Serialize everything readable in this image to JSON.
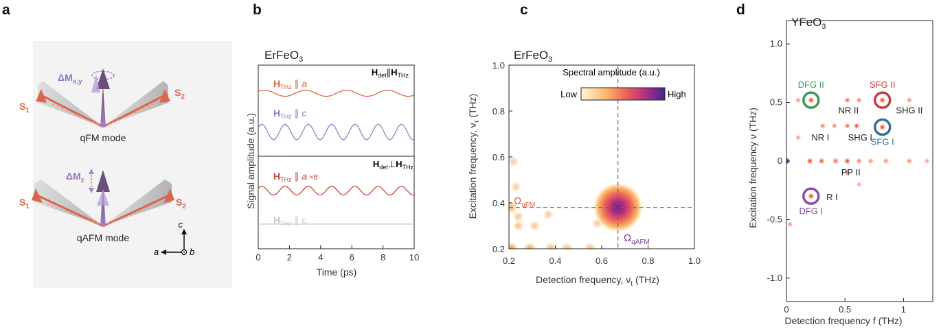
{
  "panel_labels": [
    "a",
    "b",
    "c",
    "d"
  ],
  "panel_a": {
    "top": {
      "label": "qFM mode",
      "delta_M": "ΔM",
      "delta_sub": "x,y",
      "s1": "S",
      "s1_sub": "1",
      "s2": "S",
      "s2_sub": "2"
    },
    "bottom": {
      "label": "qAFM mode",
      "delta_M": "ΔM",
      "delta_sub": "z",
      "s1": "S",
      "s1_sub": "1",
      "s2": "S",
      "s2_sub": "2"
    },
    "axes": {
      "c": "c",
      "a": "a",
      "b": "b"
    },
    "colors": {
      "spin": "#d9664a",
      "cone": "#bcbcbc",
      "magnet": "#9b72c0",
      "magnet_dark": "#6b4f7a"
    }
  },
  "chart_data": [
    {
      "id": "b",
      "type": "line",
      "title": "ErFeO",
      "title_sub": "3",
      "xlabel": "Time (ps)",
      "ylabel": "Signal amplitude (a.u.)",
      "xlim": [
        0,
        10
      ],
      "xticks": [
        "0",
        "2",
        "4",
        "6",
        "8",
        "10"
      ],
      "upper_label": {
        "H": "H",
        "det": "det",
        "par": "∥",
        "H2": "H",
        "thz": "THz"
      },
      "lower_label": {
        "H": "H",
        "det": "det",
        "perp": "⊥",
        "H2": "H",
        "thz": "THz"
      },
      "series": [
        {
          "name": "H",
          "sub": "THz",
          "rel": "∥",
          "axis": "a",
          "extra": "",
          "color": "#d9664a",
          "freq_thz": 0.38,
          "amplitude": 0.32,
          "baseline": 0.45,
          "panel": "upper"
        },
        {
          "name": "H",
          "sub": "THz",
          "rel": "∥",
          "axis": "c",
          "extra": "",
          "color": "#9580c0",
          "freq_thz": 0.67,
          "amplitude": 0.8,
          "baseline": -0.55,
          "panel": "upper"
        },
        {
          "name": "H",
          "sub": "THz",
          "rel": "∥",
          "axis": "a",
          "extra": "×8",
          "color": "#c8463a",
          "freq_thz": 0.67,
          "amplitude": 0.45,
          "baseline": 0.3,
          "panel": "lower"
        },
        {
          "name": "H",
          "sub": "THz",
          "rel": "∥",
          "axis": "c",
          "extra": "",
          "color": "#c9c9c9",
          "freq_thz": 0,
          "amplitude": 0.02,
          "baseline": -0.55,
          "panel": "lower"
        }
      ]
    },
    {
      "id": "c",
      "type": "heatmap",
      "title": "ErFeO",
      "title_sub": "3",
      "xlabel": "Detection frequency, ν",
      "xlabel_sub": "t",
      "xlabel_unit": " (THz)",
      "ylabel": "Excitation frequency, ν",
      "ylabel_sub": "τ",
      "ylabel_unit": " (THz)",
      "xlim": [
        0.2,
        1.0
      ],
      "ylim": [
        0.2,
        1.0
      ],
      "xticks": [
        "0.2",
        "0.4",
        "0.6",
        "0.8",
        "1.0"
      ],
      "yticks": [
        "0.2",
        "0.4",
        "0.6",
        "0.8",
        "1.0"
      ],
      "colorbar": {
        "title": "Spectral amplitude (a.u.)",
        "low": "Low",
        "high": "High"
      },
      "annotations": [
        {
          "text": "Ω",
          "sub": "qFM",
          "color": "#d9664a"
        },
        {
          "text": "Ω",
          "sub": "qAFM",
          "color": "#7b3fa0"
        }
      ],
      "guides": {
        "v": 0.67,
        "h": 0.38
      },
      "peaks": [
        {
          "x": 0.67,
          "y": 0.38,
          "strength": 1.0,
          "size": 0.11
        },
        {
          "x": 0.21,
          "y": 0.38,
          "strength": 0.3,
          "size": 0.03
        },
        {
          "x": 0.21,
          "y": 0.2,
          "strength": 0.6,
          "size": 0.03
        },
        {
          "x": 0.29,
          "y": 0.2,
          "strength": 0.45,
          "size": 0.03
        },
        {
          "x": 0.38,
          "y": 0.2,
          "strength": 0.3,
          "size": 0.03
        },
        {
          "x": 0.45,
          "y": 0.2,
          "strength": 0.25,
          "size": 0.03
        },
        {
          "x": 0.55,
          "y": 0.2,
          "strength": 0.25,
          "size": 0.03
        },
        {
          "x": 0.24,
          "y": 0.3,
          "strength": 0.25,
          "size": 0.025
        },
        {
          "x": 0.31,
          "y": 0.3,
          "strength": 0.2,
          "size": 0.025
        },
        {
          "x": 0.22,
          "y": 0.58,
          "strength": 0.15,
          "size": 0.025
        },
        {
          "x": 0.23,
          "y": 0.47,
          "strength": 0.15,
          "size": 0.025
        },
        {
          "x": 0.24,
          "y": 0.34,
          "strength": 0.2,
          "size": 0.025
        },
        {
          "x": 0.37,
          "y": 0.35,
          "strength": 0.15,
          "size": 0.025
        },
        {
          "x": 0.58,
          "y": 0.31,
          "strength": 0.15,
          "size": 0.025
        }
      ]
    },
    {
      "id": "d",
      "type": "heatmap",
      "title": "YFeO",
      "title_sub": "3",
      "xlabel": "Detection frequency f (THz)",
      "ylabel": "Excitation frequency ν (THz)",
      "xlim": [
        0,
        1.25
      ],
      "ylim": [
        -1.2,
        1.2
      ],
      "xticks": [
        "0",
        "0.5",
        "1"
      ],
      "yticks": [
        "1.0",
        "0.5",
        "0",
        "-0.5",
        "-1.0"
      ],
      "circles": [
        {
          "label": "DFG II",
          "x": 0.21,
          "y": 0.52,
          "color": "#3a9b56"
        },
        {
          "label": "SFG II",
          "x": 0.82,
          "y": 0.52,
          "color": "#c63b3b"
        },
        {
          "label": "SFG I",
          "x": 0.82,
          "y": 0.29,
          "color": "#2f6d9e"
        },
        {
          "label": "DFG I",
          "x": 0.21,
          "y": -0.3,
          "color": "#8a4fa8"
        }
      ],
      "labels": [
        {
          "text": "NR II",
          "x": 0.53,
          "y": 0.43
        },
        {
          "text": "SHG II",
          "x": 1.05,
          "y": 0.43
        },
        {
          "text": "NR I",
          "x": 0.29,
          "y": 0.2
        },
        {
          "text": "SHG I",
          "x": 0.63,
          "y": 0.2
        },
        {
          "text": "PP II",
          "x": 0.55,
          "y": -0.1
        },
        {
          "text": "R I",
          "x": 0.39,
          "y": -0.31
        }
      ],
      "peaks": [
        {
          "x": 0.0,
          "y": 0.0,
          "strength": 1.0,
          "size": 0.035,
          "dark": true
        },
        {
          "x": 0.2,
          "y": 0.0,
          "strength": 0.8,
          "size": 0.03
        },
        {
          "x": 0.3,
          "y": 0.0,
          "strength": 0.6,
          "size": 0.03
        },
        {
          "x": 0.42,
          "y": 0.0,
          "strength": 0.5,
          "size": 0.03
        },
        {
          "x": 0.52,
          "y": 0.0,
          "strength": 0.9,
          "size": 0.03
        },
        {
          "x": 0.62,
          "y": 0.0,
          "strength": 0.4,
          "size": 0.03
        },
        {
          "x": 0.72,
          "y": 0.0,
          "strength": 0.3,
          "size": 0.03
        },
        {
          "x": 0.85,
          "y": 0.0,
          "strength": 0.3,
          "size": 0.03
        },
        {
          "x": 1.05,
          "y": 0.0,
          "strength": 0.3,
          "size": 0.03
        },
        {
          "x": 1.2,
          "y": 0.0,
          "strength": 0.2,
          "size": 0.03
        },
        {
          "x": 0.21,
          "y": 0.52,
          "strength": 0.9,
          "size": 0.03
        },
        {
          "x": 0.82,
          "y": 0.52,
          "strength": 0.9,
          "size": 0.03
        },
        {
          "x": 0.82,
          "y": 0.29,
          "strength": 0.8,
          "size": 0.03
        },
        {
          "x": 0.21,
          "y": -0.3,
          "strength": 0.8,
          "size": 0.03
        },
        {
          "x": 0.52,
          "y": 0.52,
          "strength": 0.5,
          "size": 0.028
        },
        {
          "x": 0.52,
          "y": 0.3,
          "strength": 0.5,
          "size": 0.028
        },
        {
          "x": 0.6,
          "y": 0.3,
          "strength": 0.9,
          "size": 0.028
        },
        {
          "x": 0.31,
          "y": 0.3,
          "strength": 0.4,
          "size": 0.028
        },
        {
          "x": 0.41,
          "y": 0.3,
          "strength": 0.35,
          "size": 0.028
        },
        {
          "x": 0.62,
          "y": 0.52,
          "strength": 0.4,
          "size": 0.028
        },
        {
          "x": 1.05,
          "y": 0.52,
          "strength": 0.35,
          "size": 0.028
        },
        {
          "x": 0.1,
          "y": 0.52,
          "strength": 0.3,
          "size": 0.028
        },
        {
          "x": 0.03,
          "y": -0.54,
          "strength": 0.3,
          "size": 0.028
        },
        {
          "x": 0.52,
          "y": -0.1,
          "strength": 0.25,
          "size": 0.028
        },
        {
          "x": 0.62,
          "y": -0.2,
          "strength": 0.2,
          "size": 0.028
        },
        {
          "x": 0.1,
          "y": 0.2,
          "strength": 0.25,
          "size": 0.028
        }
      ]
    }
  ]
}
